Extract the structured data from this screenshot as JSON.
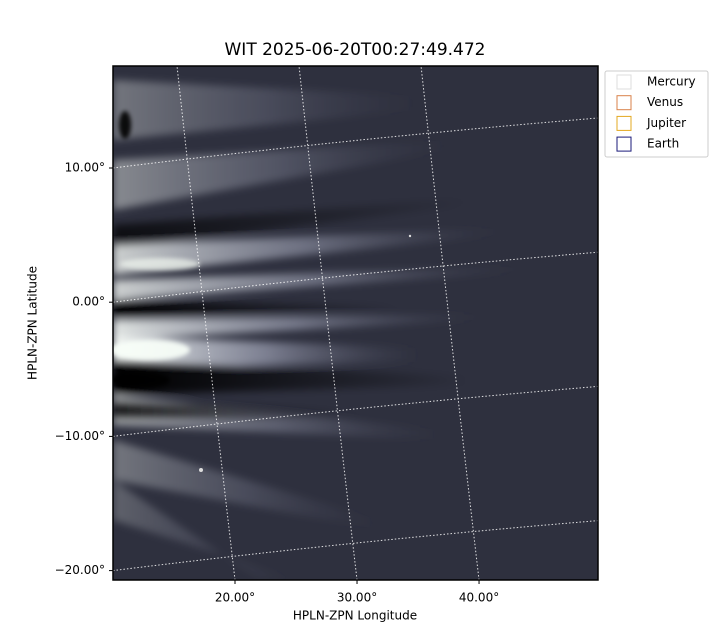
{
  "chart_data": {
    "type": "image",
    "title": "WIT 2025-06-20T00:27:49.472",
    "x_label": "HPLN-ZPN Longitude",
    "y_label": "HPLN-ZPN Latitude",
    "xlim": [
      10,
      49.75
    ],
    "ylim": [
      -20.7,
      17.6
    ],
    "xticks": [
      {
        "value": 20,
        "label": "20.00°"
      },
      {
        "value": 30,
        "label": "30.00°"
      },
      {
        "value": 40,
        "label": "40.00°"
      }
    ],
    "yticks": [
      {
        "value": -20,
        "label": "−20.00°"
      },
      {
        "value": -10,
        "label": "−10.00°"
      },
      {
        "value": 0,
        "label": "0.00°"
      },
      {
        "value": 10,
        "label": "10.00°"
      }
    ],
    "grid": true,
    "legend": [
      {
        "name": "Mercury",
        "color": "#dddddd"
      },
      {
        "name": "Venus",
        "color": "#d9824a"
      },
      {
        "name": "Jupiter",
        "color": "#e3a820"
      },
      {
        "name": "Earth",
        "color": "#1a1a7a"
      }
    ]
  }
}
